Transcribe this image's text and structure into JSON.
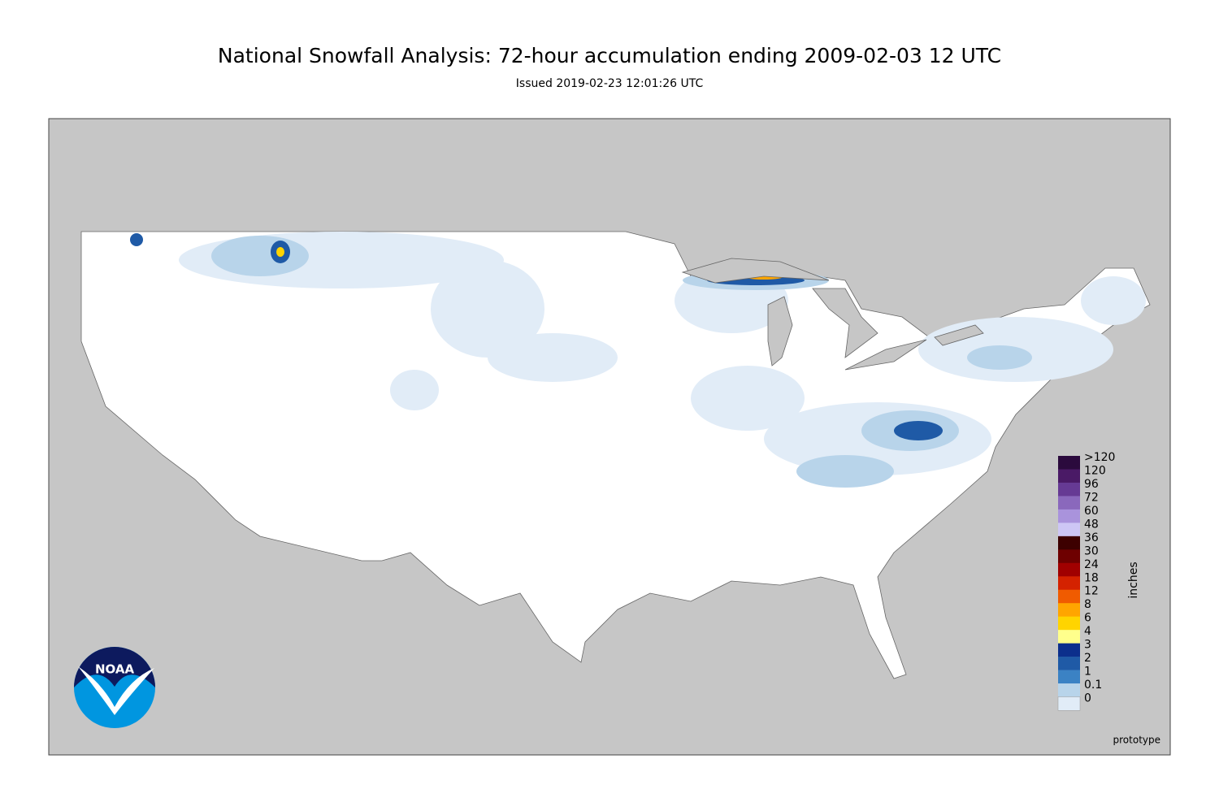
{
  "title": "National Snowfall Analysis: 72-hour accumulation ending 2009-02-03 12 UTC",
  "subtitle": "Issued 2019-02-23 12:01:26 UTC",
  "legend": {
    "label": "inches",
    "entries": [
      {
        "label": ">120",
        "color": "#2b0a3d"
      },
      {
        "label": "120",
        "color": "#4a1a66"
      },
      {
        "label": "96",
        "color": "#663a94"
      },
      {
        "label": "72",
        "color": "#8a68bc"
      },
      {
        "label": "60",
        "color": "#a993dc"
      },
      {
        "label": "48",
        "color": "#cdc6f5"
      },
      {
        "label": "36",
        "color": "#3d0000"
      },
      {
        "label": "30",
        "color": "#6e0000"
      },
      {
        "label": "24",
        "color": "#a00000"
      },
      {
        "label": "18",
        "color": "#d42200"
      },
      {
        "label": "12",
        "color": "#f05b00"
      },
      {
        "label": "8",
        "color": "#ffa500"
      },
      {
        "label": "6",
        "color": "#ffd400"
      },
      {
        "label": "4",
        "color": "#ffff8c"
      },
      {
        "label": "3",
        "color": "#0c2f8c"
      },
      {
        "label": "2",
        "color": "#1f5aa6"
      },
      {
        "label": "1",
        "color": "#3b82c4"
      },
      {
        "label": "0.1",
        "color": "#b8d4ea"
      },
      {
        "label": "0",
        "color": "#e1ecf7"
      }
    ]
  },
  "footer": "prototype",
  "logo": "NOAA"
}
